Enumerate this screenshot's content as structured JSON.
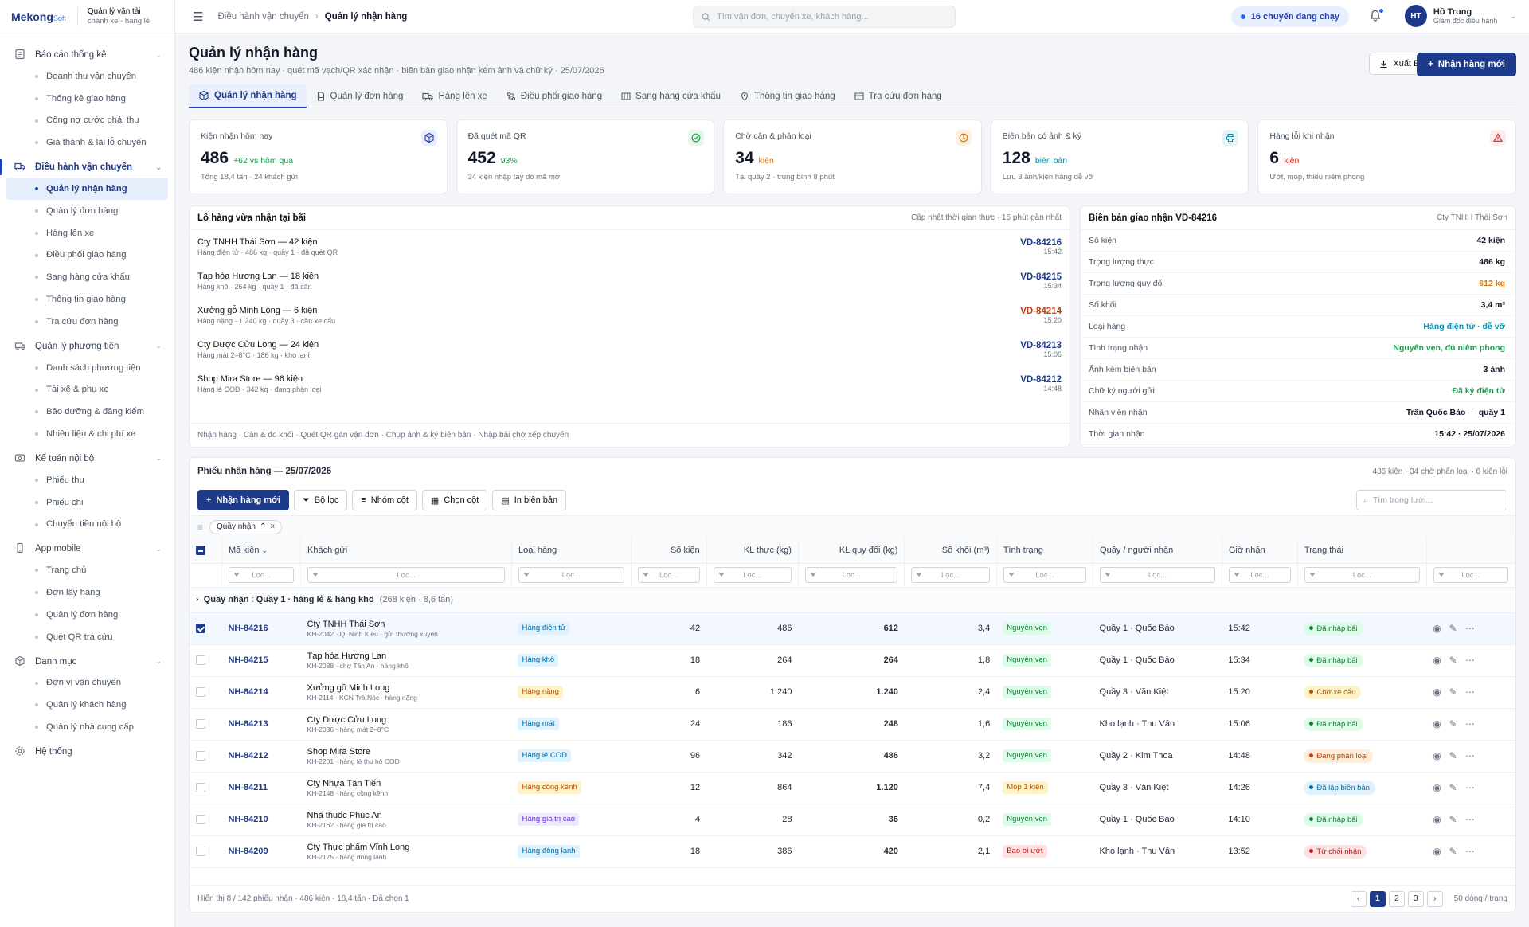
{
  "brand": {
    "logo": "Mekong",
    "logo_suffix": "Soft",
    "line1": "Quản lý vận tải",
    "line2": "chành xe - hàng lẻ"
  },
  "sidebar": [
    {
      "icon": "report-icon",
      "label": "Báo cáo thống kê",
      "items": [
        "Doanh thu vận chuyển",
        "Thống kê giao hàng",
        "Công nợ cước phải thu",
        "Giá thành & lãi lỗ chuyến"
      ]
    },
    {
      "icon": "truck-icon",
      "label": "Điều hành vận chuyển",
      "active": true,
      "items": [
        "Quản lý nhận hàng",
        "Quản lý đơn hàng",
        "Hàng lên xe",
        "Điều phối giao hàng",
        "Sang hàng cửa khẩu",
        "Thông tin giao hàng",
        "Tra cứu đơn hàng"
      ]
    },
    {
      "icon": "vehicle-icon",
      "label": "Quản lý phương tiện",
      "items": [
        "Danh sách phương tiện",
        "Tài xế & phụ xe",
        "Bảo dưỡng & đăng kiểm",
        "Nhiên liệu & chi phí xe"
      ]
    },
    {
      "icon": "wallet-icon",
      "label": "Kế toán nội bộ",
      "items": [
        "Phiếu thu",
        "Phiếu chi",
        "Chuyển tiền nội bộ"
      ]
    },
    {
      "icon": "mobile-icon",
      "label": "App mobile",
      "items": [
        "Trang chủ",
        "Đơn lấy hàng",
        "Quản lý đơn hàng",
        "Quét QR tra cứu"
      ]
    },
    {
      "icon": "box-icon",
      "label": "Danh mục",
      "items": [
        "Đơn vị vận chuyển",
        "Quản lý khách hàng",
        "Quản lý nhà cung cấp"
      ]
    },
    {
      "icon": "gear-icon",
      "label": "Hệ thống",
      "items": []
    }
  ],
  "topbar": {
    "crumb1": "Điều hành vận chuyển",
    "crumb2": "Quản lý nhận hàng",
    "search_placeholder": "Tìm vận đơn, chuyến xe, khách hàng...",
    "running": "16 chuyến đang chạy",
    "user_initials": "HT",
    "user_name": "Hồ Trung",
    "user_role": "Giám đốc điều hành"
  },
  "page": {
    "title": "Quản lý nhận hàng",
    "subtitle": "486 kiện nhận hôm nay · quét mã vạch/QR xác nhận · biên bản giao nhận kèm ảnh và chữ ký · 25/07/2026",
    "export": "Xuất Excel",
    "new": "Nhận hàng mới"
  },
  "tabs": [
    {
      "icon": "box-icon",
      "label": "Quản lý nhận hàng"
    },
    {
      "icon": "document-icon",
      "label": "Quản lý đơn hàng"
    },
    {
      "icon": "truck-icon",
      "label": "Hàng lên xe"
    },
    {
      "icon": "route-icon",
      "label": "Điều phối giao hàng"
    },
    {
      "icon": "gate-icon",
      "label": "Sang hàng cửa khẩu"
    },
    {
      "icon": "pin-icon",
      "label": "Thông tin giao hàng"
    },
    {
      "icon": "table-icon",
      "label": "Tra cứu đơn hàng"
    }
  ],
  "cards": [
    {
      "label": "Kiện nhận hôm nay",
      "value": "486",
      "delta": "+62 vs hôm qua",
      "delta_color": "#16a34a",
      "foot": "Tổng 18,4 tấn · 24 khách gửi",
      "icon": "box-icon",
      "icon_bg": "#e8eefb",
      "icon_color": "#1e40af"
    },
    {
      "label": "Đã quét mã QR",
      "value": "452",
      "delta": "93%",
      "delta_color": "#16a34a",
      "foot": "34 kiện nhập tay do mã mờ",
      "icon": "check-icon",
      "icon_bg": "#e7f6ec",
      "icon_color": "#16a34a"
    },
    {
      "label": "Chờ cân & phân loại",
      "value": "34",
      "delta": "kiện",
      "delta_color": "#d97706",
      "foot": "Tại quầy 2 · trung bình 8 phút",
      "icon": "clock-icon",
      "icon_bg": "#fdf0e1",
      "icon_color": "#d97706"
    },
    {
      "label": "Biên bản có ảnh & ký",
      "value": "128",
      "delta": "biên bản",
      "delta_color": "#0891b2",
      "foot": "Lưu 3 ảnh/kiện hàng dễ vỡ",
      "icon": "printer-icon",
      "icon_bg": "#e3f4f8",
      "icon_color": "#0891b2"
    },
    {
      "label": "Hàng lỗi khi nhận",
      "value": "6",
      "delta": "kiện",
      "delta_color": "#dc2626",
      "foot": "Ướt, móp, thiếu niêm phong",
      "icon": "warning-icon",
      "icon_bg": "#fdecec",
      "icon_color": "#dc2626"
    }
  ],
  "lots": {
    "title": "Lô hàng vừa nhận tại bãi",
    "note": "Cập nhật thời gian thực · 15 phút gần nhất",
    "footer": "Nhận hàng · Cân & đo khối · Quét QR gán vận đơn · Chụp ảnh & ký biên bản · Nhập bãi chờ xếp chuyến",
    "items": [
      {
        "name": "Cty TNHH Thái Sơn — 42 kiện",
        "desc": "Hàng điện tử · 486 kg · quầy 1 · đã quét QR",
        "code": "VD-84216",
        "time": "15:42",
        "color": "#1e3a8a"
      },
      {
        "name": "Tạp hóa Hương Lan — 18 kiện",
        "desc": "Hàng khô · 264 kg · quầy 1 · đã cân",
        "code": "VD-84215",
        "time": "15:34",
        "color": "#1e3a8a"
      },
      {
        "name": "Xưởng gỗ Minh Long — 6 kiện",
        "desc": "Hàng nặng · 1.240 kg · quầy 3 · cần xe cẩu",
        "code": "VD-84214",
        "time": "15:20",
        "color": "#c2410c"
      },
      {
        "name": "Cty Dược Cửu Long — 24 kiện",
        "desc": "Hàng mát 2–8°C · 186 kg · kho lạnh",
        "code": "VD-84213",
        "time": "15:06",
        "color": "#1e3a8a"
      },
      {
        "name": "Shop Mira Store — 96 kiện",
        "desc": "Hàng lẻ COD · 342 kg · đang phân loại",
        "code": "VD-84212",
        "time": "14:48",
        "color": "#1e3a8a"
      }
    ]
  },
  "receipt": {
    "title": "Biên bản giao nhận VD-84216",
    "company": "Cty TNHH Thái Sơn",
    "rows": [
      {
        "k": "Số kiện",
        "v": "42 kiện",
        "c": "#111827"
      },
      {
        "k": "Trọng lượng thực",
        "v": "486 kg",
        "c": "#111827"
      },
      {
        "k": "Trọng lượng quy đổi",
        "v": "612 kg",
        "c": "#d97706"
      },
      {
        "k": "Số khối",
        "v": "3,4 m³",
        "c": "#111827"
      },
      {
        "k": "Loại hàng",
        "v": "Hàng điện tử · dễ vỡ",
        "c": "#0891b2"
      },
      {
        "k": "Tình trạng nhận",
        "v": "Nguyên vẹn, đủ niêm phong",
        "c": "#16a34a"
      },
      {
        "k": "Ảnh kèm biên bản",
        "v": "3 ảnh",
        "c": "#111827"
      },
      {
        "k": "Chữ ký người gửi",
        "v": "Đã ký điện tử",
        "c": "#16a34a"
      },
      {
        "k": "Nhân viên nhận",
        "v": "Trần Quốc Bảo — quầy 1",
        "c": "#111827"
      },
      {
        "k": "Thời gian nhận",
        "v": "15:42 · 25/07/2026",
        "c": "#111827"
      }
    ]
  },
  "grid": {
    "title": "Phiếu nhận hàng — 25/07/2026",
    "summary": "486 kiện · 34 chờ phân loại · 6 kiện lỗi",
    "toolbar": {
      "new": "Nhận hàng mới",
      "filter": "Bộ lọc",
      "group": "Nhóm cột",
      "columns": "Chọn cột",
      "print": "In biên bản",
      "search": "Tìm trong lưới..."
    },
    "chip": "Quầy nhận",
    "columns": [
      "Mã kiện",
      "Khách gửi",
      "Loại hàng",
      "Số kiện",
      "KL thực (kg)",
      "KL quy đổi (kg)",
      "Số khối (m³)",
      "Tình trạng",
      "Quầy / người nhận",
      "Giờ nhận",
      "Trạng thái"
    ],
    "filter": "Lọc...",
    "group_label": "Quầy nhận",
    "group_value": "Quầy 1 · hàng lẻ & hàng khô",
    "group_count": "(268 kiện · 8,6 tấn)",
    "rows": [
      {
        "sel": true,
        "code": "NH-84216",
        "name": "Cty TNHH Thái Sơn",
        "sub": "KH-2042 · Q. Ninh Kiều · gửi thường xuyên",
        "type": "Hàng điện tử",
        "type_bg": "#e0f2fe",
        "type_fg": "#0369a1",
        "qty": "42",
        "kg": "486",
        "qkg": "612",
        "m3": "3,4",
        "cond": "Nguyên vẹn",
        "cond_bg": "#dcfce7",
        "cond_fg": "#15803d",
        "desk": "Quầy 1 · Quốc Bảo",
        "time": "15:42",
        "status": "Đã nhập bãi",
        "st_bg": "#dcfce7",
        "st_fg": "#15803d"
      },
      {
        "sel": false,
        "code": "NH-84215",
        "name": "Tạp hóa Hương Lan",
        "sub": "KH-2088 · chợ Tân An · hàng khô",
        "type": "Hàng khô",
        "type_bg": "#e0f2fe",
        "type_fg": "#0369a1",
        "qty": "18",
        "kg": "264",
        "qkg": "264",
        "m3": "1,8",
        "cond": "Nguyên vẹn",
        "cond_bg": "#dcfce7",
        "cond_fg": "#15803d",
        "desk": "Quầy 1 · Quốc Bảo",
        "time": "15:34",
        "status": "Đã nhập bãi",
        "st_bg": "#dcfce7",
        "st_fg": "#15803d"
      },
      {
        "sel": false,
        "code": "NH-84214",
        "name": "Xưởng gỗ Minh Long",
        "sub": "KH-2114 · KCN Trà Nóc · hàng nặng",
        "type": "Hàng nặng",
        "type_bg": "#fef3c7",
        "type_fg": "#b45309",
        "qty": "6",
        "kg": "1.240",
        "qkg": "1.240",
        "m3": "2,4",
        "cond": "Nguyên vẹn",
        "cond_bg": "#dcfce7",
        "cond_fg": "#15803d",
        "desk": "Quầy 3 · Văn Kiệt",
        "time": "15:20",
        "status": "Chờ xe cẩu",
        "st_bg": "#fef3c7",
        "st_fg": "#b45309"
      },
      {
        "sel": false,
        "code": "NH-84213",
        "name": "Cty Dược Cửu Long",
        "sub": "KH-2036 · hàng mát 2–8°C",
        "type": "Hàng mát",
        "type_bg": "#e0f2fe",
        "type_fg": "#0369a1",
        "qty": "24",
        "kg": "186",
        "qkg": "248",
        "m3": "1,6",
        "cond": "Nguyên vẹn",
        "cond_bg": "#dcfce7",
        "cond_fg": "#15803d",
        "desk": "Kho lạnh · Thu Vân",
        "time": "15:06",
        "status": "Đã nhập bãi",
        "st_bg": "#dcfce7",
        "st_fg": "#15803d"
      },
      {
        "sel": false,
        "code": "NH-84212",
        "name": "Shop Mira Store",
        "sub": "KH-2201 · hàng lẻ thu hộ COD",
        "type": "Hàng lẻ COD",
        "type_bg": "#e0f2fe",
        "type_fg": "#0369a1",
        "qty": "96",
        "kg": "342",
        "qkg": "486",
        "m3": "3,2",
        "cond": "Nguyên vẹn",
        "cond_bg": "#dcfce7",
        "cond_fg": "#15803d",
        "desk": "Quầy 2 · Kim Thoa",
        "time": "14:48",
        "status": "Đang phân loại",
        "st_bg": "#ffedd5",
        "st_fg": "#c2410c"
      },
      {
        "sel": false,
        "code": "NH-84211",
        "name": "Cty Nhựa Tân Tiến",
        "sub": "KH-2148 · hàng cồng kềnh",
        "type": "Hàng cồng kềnh",
        "type_bg": "#fef3c7",
        "type_fg": "#b45309",
        "qty": "12",
        "kg": "864",
        "qkg": "1.120",
        "m3": "7,4",
        "cond": "Móp 1 kiện",
        "cond_bg": "#fef3c7",
        "cond_fg": "#b45309",
        "desk": "Quầy 3 · Văn Kiệt",
        "time": "14:26",
        "status": "Đã lập biên bản",
        "st_bg": "#e0f2fe",
        "st_fg": "#0369a1"
      },
      {
        "sel": false,
        "code": "NH-84210",
        "name": "Nhà thuốc Phúc An",
        "sub": "KH-2162 · hàng giá trị cao",
        "type": "Hàng giá trị cao",
        "type_bg": "#ede9fe",
        "type_fg": "#6d28d9",
        "qty": "4",
        "kg": "28",
        "qkg": "36",
        "m3": "0,2",
        "cond": "Nguyên vẹn",
        "cond_bg": "#dcfce7",
        "cond_fg": "#15803d",
        "desk": "Quầy 1 · Quốc Bảo",
        "time": "14:10",
        "status": "Đã nhập bãi",
        "st_bg": "#dcfce7",
        "st_fg": "#15803d"
      },
      {
        "sel": false,
        "code": "NH-84209",
        "name": "Cty Thực phẩm Vĩnh Long",
        "sub": "KH-2175 · hàng đông lạnh",
        "type": "Hàng đông lạnh",
        "type_bg": "#e0f2fe",
        "type_fg": "#0369a1",
        "qty": "18",
        "kg": "386",
        "qkg": "420",
        "m3": "2,1",
        "cond": "Bao bì ướt",
        "cond_bg": "#fee2e2",
        "cond_fg": "#b91c1c",
        "desk": "Kho lạnh · Thu Vân",
        "time": "13:52",
        "status": "Từ chối nhận",
        "st_bg": "#fee2e2",
        "st_fg": "#b91c1c"
      }
    ],
    "footer": "Hiển thị 8 / 142 phiếu nhận · 486 kiện · 18,4 tấn · Đã chọn 1",
    "pages": [
      "1",
      "2",
      "3"
    ],
    "per_page": "50 dòng / trang"
  }
}
